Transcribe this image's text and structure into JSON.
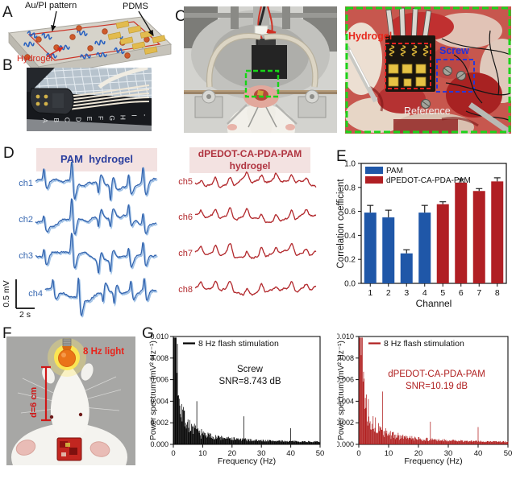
{
  "panelA": {
    "label": "A",
    "au_pi_label": "Au/PI pattern",
    "pdms_label": "PDMS",
    "hydrogel_label": "Hydrogel"
  },
  "panelB": {
    "label": "B",
    "ruler_letters": "ABCDEFGHI-"
  },
  "panelC": {
    "label": "C",
    "inset": {
      "hydrogel_label": "Hydrogel",
      "screw_label": "Screw",
      "reference_label": "Reference"
    }
  },
  "panelD": {
    "label": "D",
    "left_title": "PAM  hydrogel",
    "right_title_line1": "dPEDOT-CA-PDA-PAM",
    "right_title_line2": "hydrogel",
    "banner_color": "#f3e2e1"
  },
  "panelE": {
    "label": "E"
  },
  "panelF": {
    "label": "F",
    "light_label": "8 Hz light",
    "distance_label": "d=6 cm"
  },
  "panelG": {
    "label": "G"
  },
  "chart_data": [
    {
      "id": "panel-E",
      "type": "bar",
      "xlabel": "Channel",
      "ylabel": "Correlation coefficient",
      "ylim": [
        0.0,
        1.0
      ],
      "yticks": [
        "0.0",
        "0.2",
        "0.4",
        "0.6",
        "0.8",
        "1.0"
      ],
      "categories": [
        "1",
        "2",
        "3",
        "4",
        "5",
        "6",
        "7",
        "8"
      ],
      "series": [
        {
          "name": "PAM",
          "color": "#1f57a8",
          "values": [
            0.59,
            0.55,
            0.25,
            0.59,
            null,
            null,
            null,
            null
          ],
          "errors": [
            0.06,
            0.06,
            0.03,
            0.06,
            null,
            null,
            null,
            null
          ]
        },
        {
          "name": "dPEDOT-CA-PDA-PAM",
          "color": "#b01f24",
          "values": [
            null,
            null,
            null,
            null,
            0.66,
            0.84,
            0.77,
            0.85
          ],
          "errors": [
            null,
            null,
            null,
            null,
            0.02,
            0.03,
            0.02,
            0.03
          ]
        }
      ],
      "legend_position": "top-left",
      "grid": false
    },
    {
      "id": "panel-G-screw",
      "type": "area",
      "color": "#000000",
      "legend": "8 Hz flash stimulation",
      "annotation_line1": "Screw",
      "annotation_line2": "SNR=8.743 dB",
      "xlabel": "Frequency (Hz)",
      "ylabel": "Power spectrum (mV² Hz⁻¹)",
      "xlim": [
        0,
        50
      ],
      "ylim": [
        0,
        0.01
      ],
      "xticks": [
        "0",
        "10",
        "20",
        "30",
        "40",
        "50"
      ],
      "yticks": [
        "0.000",
        "0.002",
        "0.004",
        "0.006",
        "0.008",
        "0.010"
      ],
      "baseline": "1/f broadband EEG power decay",
      "peaks": [
        {
          "freq": 8,
          "power": 0.004
        },
        {
          "freq": 24,
          "power": 0.0026
        },
        {
          "freq": 40,
          "power": 0.0015
        }
      ]
    },
    {
      "id": "panel-G-dpedot",
      "type": "area",
      "color": "#b01f1f",
      "legend": "8 Hz flash stimulation",
      "annotation_line1": "dPEDOT-CA-PDA-PAM",
      "annotation_line2": "SNR=10.19 dB",
      "xlabel": "Frequency (Hz)",
      "ylabel": "Power spectrum (mV² Hz⁻¹)",
      "xlim": [
        0,
        50
      ],
      "ylim": [
        0,
        0.01
      ],
      "xticks": [
        "0",
        "10",
        "20",
        "30",
        "40",
        "50"
      ],
      "yticks": [
        "0.000",
        "0.002",
        "0.004",
        "0.006",
        "0.008",
        "0.010"
      ],
      "baseline": "1/f broadband EEG power decay",
      "peaks": [
        {
          "freq": 3.2,
          "power": 0.0042
        },
        {
          "freq": 8,
          "power": 0.0049
        },
        {
          "freq": 24,
          "power": 0.0021
        },
        {
          "freq": 40,
          "power": 0.0016
        }
      ]
    },
    {
      "id": "panel-D",
      "type": "line",
      "description": "ECoG voltage traces recorded from 8 channels",
      "yscale_label": "0.5 mV",
      "xscale_label": "2 s",
      "groups": [
        {
          "name": "PAM",
          "color": "#3566b0",
          "relative_amplitude": 1.0,
          "channels": [
            "ch1",
            "ch2",
            "ch3",
            "ch4"
          ],
          "events": [
            {
              "t": 0.07,
              "a": 0.5,
              "dir": 1
            },
            {
              "t": 0.3,
              "a": 1.0,
              "dir": 1
            },
            {
              "t": 0.52,
              "a": 0.55,
              "dir": -1
            },
            {
              "t": 0.62,
              "a": 0.6,
              "dir": -1
            },
            {
              "t": 0.77,
              "a": 0.55,
              "dir": 1
            },
            {
              "t": 0.89,
              "a": 0.7,
              "dir": 1
            }
          ]
        },
        {
          "name": "dPEDOT-CA-PDA-PAM",
          "color": "#b2282c",
          "relative_amplitude": 0.42,
          "channels": [
            "ch5",
            "ch6",
            "ch7",
            "ch8"
          ],
          "events": [
            {
              "t": 0.05,
              "a": 0.55,
              "dir": 1
            },
            {
              "t": 0.17,
              "a": 0.8,
              "dir": 1
            },
            {
              "t": 0.29,
              "a": 0.9,
              "dir": 1
            },
            {
              "t": 0.43,
              "a": 0.6,
              "dir": 1
            },
            {
              "t": 0.55,
              "a": 0.85,
              "dir": 1
            },
            {
              "t": 0.67,
              "a": 0.7,
              "dir": 1
            },
            {
              "t": 0.8,
              "a": 0.9,
              "dir": 1
            },
            {
              "t": 0.92,
              "a": 0.75,
              "dir": 1
            }
          ]
        }
      ]
    }
  ]
}
